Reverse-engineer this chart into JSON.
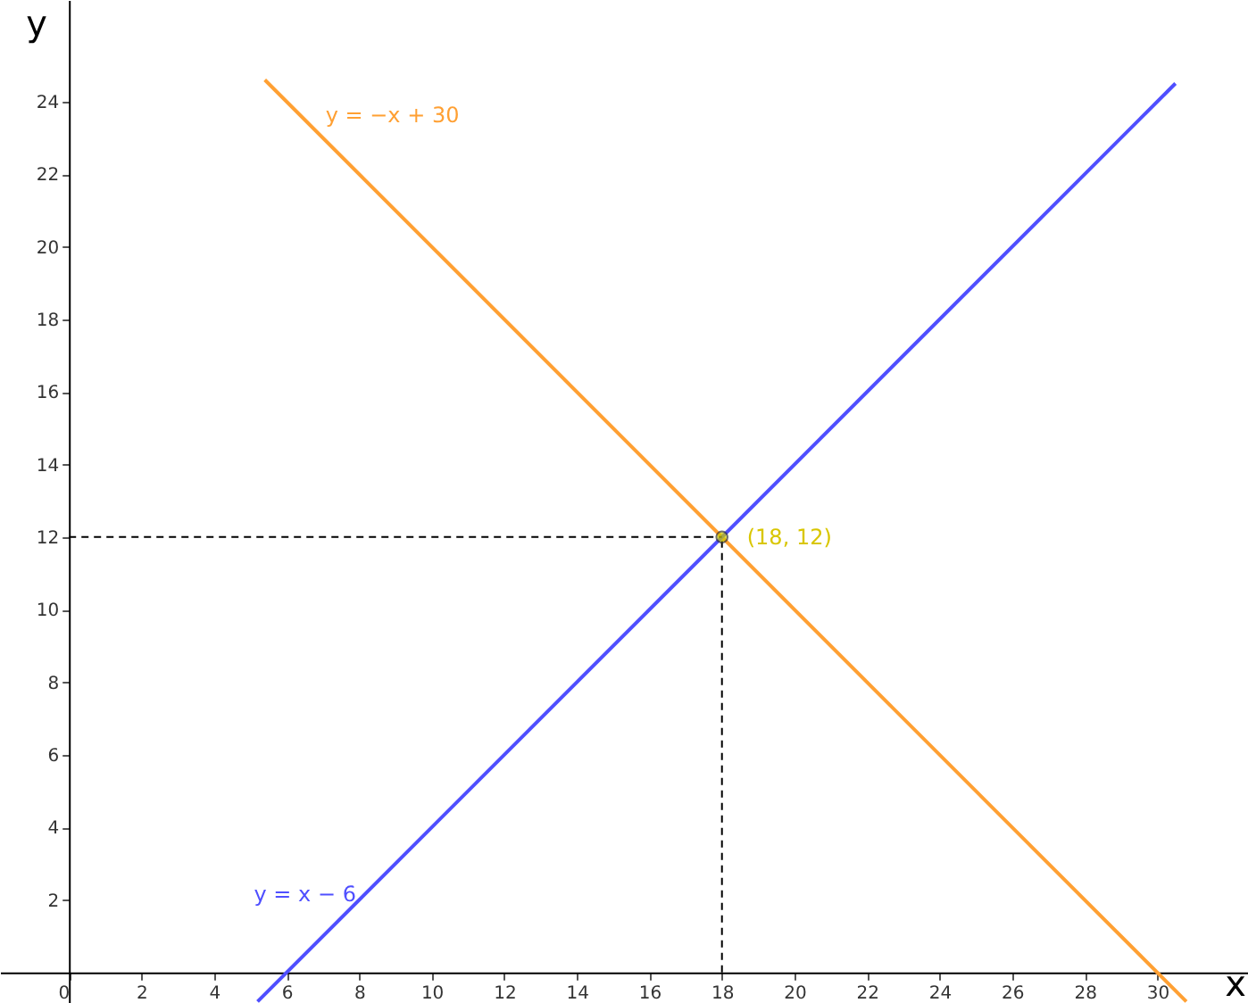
{
  "chart_data": {
    "type": "line",
    "xlabel": "x",
    "ylabel": "y",
    "xlim": [
      -1.9,
      32.5
    ],
    "ylim": [
      -0.84,
      26.8
    ],
    "xticks": [
      0,
      2,
      4,
      6,
      8,
      10,
      12,
      14,
      16,
      18,
      20,
      22,
      24,
      26,
      28,
      30
    ],
    "yticks": [
      2,
      4,
      6,
      8,
      10,
      12,
      14,
      16,
      18,
      20,
      22,
      24
    ],
    "grid": false,
    "series": [
      {
        "name": "y = −x + 30",
        "line_style": "solid",
        "color": "#ffa033",
        "x": [
          5.4,
          30.8
        ],
        "values": [
          24.6,
          -0.8
        ]
      },
      {
        "name": "y = x − 6",
        "line_style": "solid",
        "color": "#4f4fff",
        "x": [
          5.2,
          30.5
        ],
        "values": [
          -0.8,
          24.5
        ]
      },
      {
        "type": "line",
        "color": "#000000",
        "line_style": "dashed",
        "x": [
          0,
          18
        ],
        "values": [
          12,
          12
        ]
      },
      {
        "type": "line",
        "color": "#000000",
        "line_style": "dashed",
        "x": [
          18,
          18
        ],
        "values": [
          0,
          12
        ]
      },
      {
        "type": "scatter",
        "color": "#cccc00",
        "marker": "circle",
        "x": [
          18
        ],
        "values": [
          12
        ]
      }
    ],
    "annotations": [
      {
        "text": "(18, 12)",
        "x": 18,
        "y": 12
      }
    ]
  }
}
